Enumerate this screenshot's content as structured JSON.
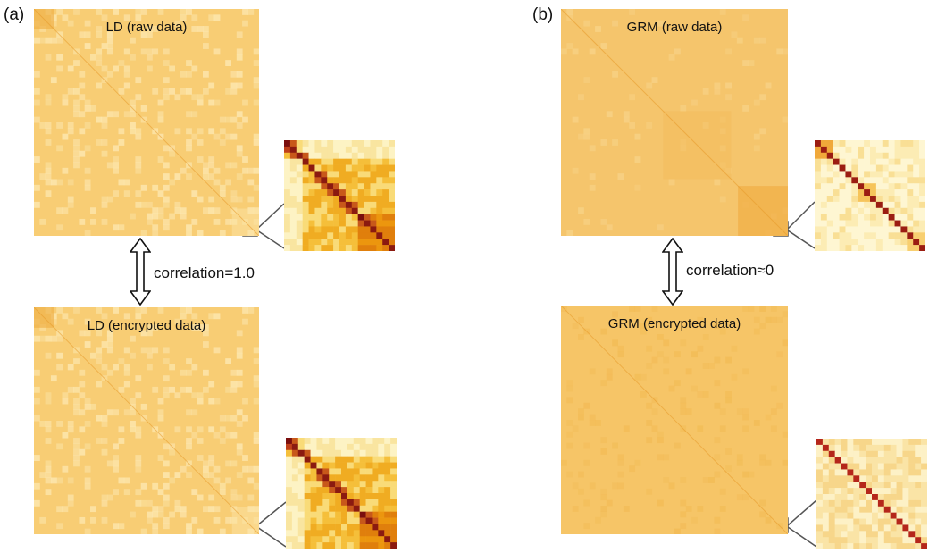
{
  "panels": [
    {
      "label": "(a)",
      "top_title": "LD (raw data)",
      "bottom_title": "LD (encrypted data)",
      "correlation": "correlation=1.0"
    },
    {
      "label": "(b)",
      "top_title": "GRM (raw data)",
      "bottom_title": "GRM (encrypted data)",
      "correlation": "correlation≈0"
    }
  ],
  "colors": {
    "base": "#f5c46b",
    "diag": "#8b1a10",
    "light": "#fdf0bf",
    "mid": "#f2b12a",
    "dark": "#e08a10",
    "frame": "#555555"
  }
}
